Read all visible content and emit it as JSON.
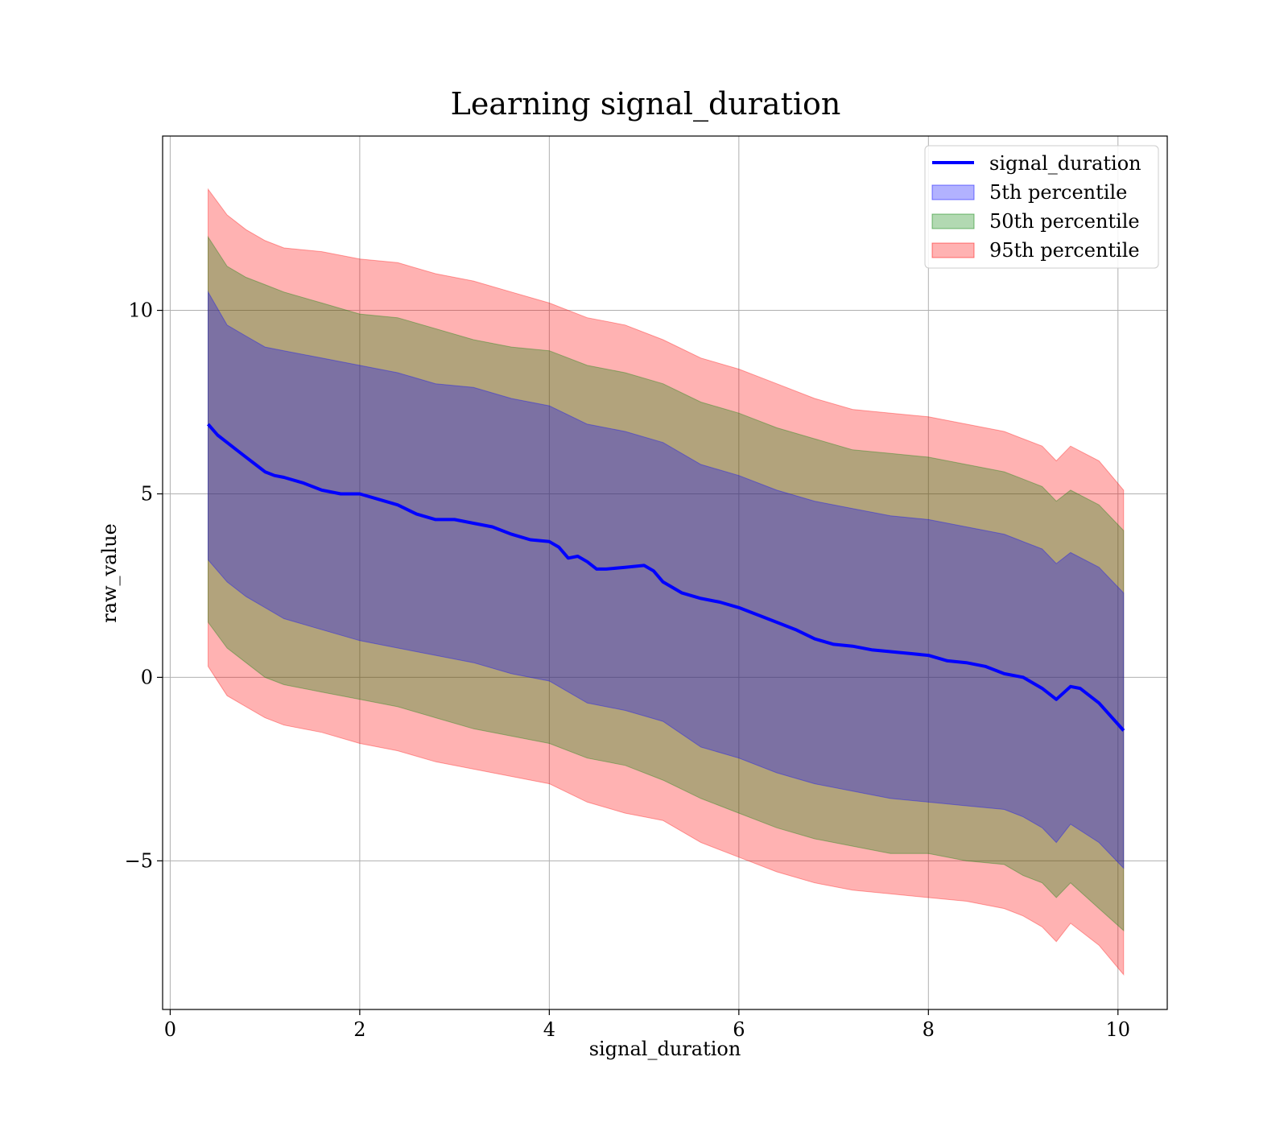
{
  "chart_data": {
    "type": "area",
    "title": "Learning signal_duration",
    "xlabel": "signal_duration",
    "ylabel": "raw_value",
    "xlim": [
      -0.08,
      10.52
    ],
    "ylim": [
      -9.05,
      14.75
    ],
    "grid": true,
    "legend_position": "top-right",
    "x_ticks": [
      0,
      2,
      4,
      6,
      8,
      10
    ],
    "x_tick_labels": [
      "0",
      "2",
      "4",
      "6",
      "8",
      "10"
    ],
    "y_ticks": [
      -5,
      0,
      5,
      10
    ],
    "y_tick_labels": [
      "−5",
      "0",
      "5",
      "10"
    ],
    "line": {
      "name": "signal_duration",
      "color": "#0000ff",
      "x": [
        0.4,
        0.5,
        0.6,
        0.7,
        0.8,
        0.9,
        1.0,
        1.1,
        1.2,
        1.4,
        1.6,
        1.8,
        2.0,
        2.2,
        2.4,
        2.6,
        2.8,
        3.0,
        3.2,
        3.4,
        3.6,
        3.8,
        4.0,
        4.1,
        4.2,
        4.3,
        4.4,
        4.5,
        4.6,
        4.8,
        5.0,
        5.1,
        5.2,
        5.4,
        5.6,
        5.8,
        6.0,
        6.2,
        6.4,
        6.6,
        6.8,
        7.0,
        7.2,
        7.4,
        7.6,
        7.8,
        8.0,
        8.2,
        8.4,
        8.6,
        8.8,
        9.0,
        9.2,
        9.35,
        9.5,
        9.6,
        9.8,
        10.06
      ],
      "y": [
        6.9,
        6.6,
        6.4,
        6.2,
        6.0,
        5.8,
        5.6,
        5.5,
        5.45,
        5.3,
        5.1,
        5.0,
        5.0,
        4.85,
        4.7,
        4.45,
        4.3,
        4.3,
        4.2,
        4.1,
        3.9,
        3.75,
        3.7,
        3.55,
        3.25,
        3.3,
        3.15,
        2.95,
        2.95,
        3.0,
        3.05,
        2.9,
        2.6,
        2.3,
        2.15,
        2.05,
        1.9,
        1.7,
        1.5,
        1.3,
        1.05,
        0.9,
        0.85,
        0.75,
        0.7,
        0.65,
        0.6,
        0.45,
        0.4,
        0.3,
        0.1,
        0.0,
        -0.3,
        -0.6,
        -0.25,
        -0.3,
        -0.7,
        -1.45
      ]
    },
    "bands": [
      {
        "name": "95th percentile",
        "color": "#ff0000",
        "opacity": 0.3,
        "x": [
          0.4,
          0.6,
          0.8,
          1.0,
          1.2,
          1.6,
          2.0,
          2.4,
          2.8,
          3.2,
          3.6,
          4.0,
          4.4,
          4.8,
          5.2,
          5.6,
          6.0,
          6.4,
          6.8,
          7.2,
          7.6,
          8.0,
          8.4,
          8.8,
          9.0,
          9.2,
          9.35,
          9.5,
          9.8,
          10.06
        ],
        "upper": [
          13.3,
          12.6,
          12.2,
          11.9,
          11.7,
          11.6,
          11.4,
          11.3,
          11.0,
          10.8,
          10.5,
          10.2,
          9.8,
          9.6,
          9.2,
          8.7,
          8.4,
          8.0,
          7.6,
          7.3,
          7.2,
          7.1,
          6.9,
          6.7,
          6.5,
          6.3,
          5.9,
          6.3,
          5.9,
          5.1
        ],
        "lower": [
          0.3,
          -0.5,
          -0.8,
          -1.1,
          -1.3,
          -1.5,
          -1.8,
          -2.0,
          -2.3,
          -2.5,
          -2.7,
          -2.9,
          -3.4,
          -3.7,
          -3.9,
          -4.5,
          -4.9,
          -5.3,
          -5.6,
          -5.8,
          -5.9,
          -6.0,
          -6.1,
          -6.3,
          -6.5,
          -6.8,
          -7.2,
          -6.7,
          -7.3,
          -8.1
        ]
      },
      {
        "name": "50th percentile",
        "color": "#008000",
        "opacity": 0.3,
        "x": [
          0.4,
          0.6,
          0.8,
          1.0,
          1.2,
          1.6,
          2.0,
          2.4,
          2.8,
          3.2,
          3.6,
          4.0,
          4.4,
          4.8,
          5.2,
          5.6,
          6.0,
          6.4,
          6.8,
          7.2,
          7.6,
          8.0,
          8.4,
          8.8,
          9.0,
          9.2,
          9.35,
          9.5,
          9.8,
          10.06
        ],
        "upper": [
          12.0,
          11.2,
          10.9,
          10.7,
          10.5,
          10.2,
          9.9,
          9.8,
          9.5,
          9.2,
          9.0,
          8.9,
          8.5,
          8.3,
          8.0,
          7.5,
          7.2,
          6.8,
          6.5,
          6.2,
          6.1,
          6.0,
          5.8,
          5.6,
          5.4,
          5.2,
          4.8,
          5.1,
          4.7,
          4.0
        ],
        "lower": [
          1.5,
          0.8,
          0.4,
          0.0,
          -0.2,
          -0.4,
          -0.6,
          -0.8,
          -1.1,
          -1.4,
          -1.6,
          -1.8,
          -2.2,
          -2.4,
          -2.8,
          -3.3,
          -3.7,
          -4.1,
          -4.4,
          -4.6,
          -4.8,
          -4.8,
          -5.0,
          -5.1,
          -5.4,
          -5.6,
          -6.0,
          -5.6,
          -6.3,
          -6.9
        ]
      },
      {
        "name": "5th percentile",
        "color": "#0000ff",
        "opacity": 0.3,
        "x": [
          0.4,
          0.6,
          0.8,
          1.0,
          1.2,
          1.6,
          2.0,
          2.4,
          2.8,
          3.2,
          3.6,
          4.0,
          4.4,
          4.8,
          5.2,
          5.6,
          6.0,
          6.4,
          6.8,
          7.2,
          7.6,
          8.0,
          8.4,
          8.8,
          9.0,
          9.2,
          9.35,
          9.5,
          9.8,
          10.06
        ],
        "upper": [
          10.5,
          9.6,
          9.3,
          9.0,
          8.9,
          8.7,
          8.5,
          8.3,
          8.0,
          7.9,
          7.6,
          7.4,
          6.9,
          6.7,
          6.4,
          5.8,
          5.5,
          5.1,
          4.8,
          4.6,
          4.4,
          4.3,
          4.1,
          3.9,
          3.7,
          3.5,
          3.1,
          3.4,
          3.0,
          2.3
        ],
        "lower": [
          3.2,
          2.6,
          2.2,
          1.9,
          1.6,
          1.3,
          1.0,
          0.8,
          0.6,
          0.4,
          0.1,
          -0.1,
          -0.7,
          -0.9,
          -1.2,
          -1.9,
          -2.2,
          -2.6,
          -2.9,
          -3.1,
          -3.3,
          -3.4,
          -3.5,
          -3.6,
          -3.8,
          -4.1,
          -4.5,
          -4.0,
          -4.5,
          -5.2
        ]
      }
    ],
    "legend": [
      {
        "label": "signal_duration",
        "kind": "line",
        "color": "#0000ff"
      },
      {
        "label": "5th percentile",
        "kind": "patch",
        "color": "#0000ff"
      },
      {
        "label": "50th percentile",
        "kind": "patch",
        "color": "#008000"
      },
      {
        "label": "95th percentile",
        "kind": "patch",
        "color": "#ff0000"
      }
    ]
  }
}
